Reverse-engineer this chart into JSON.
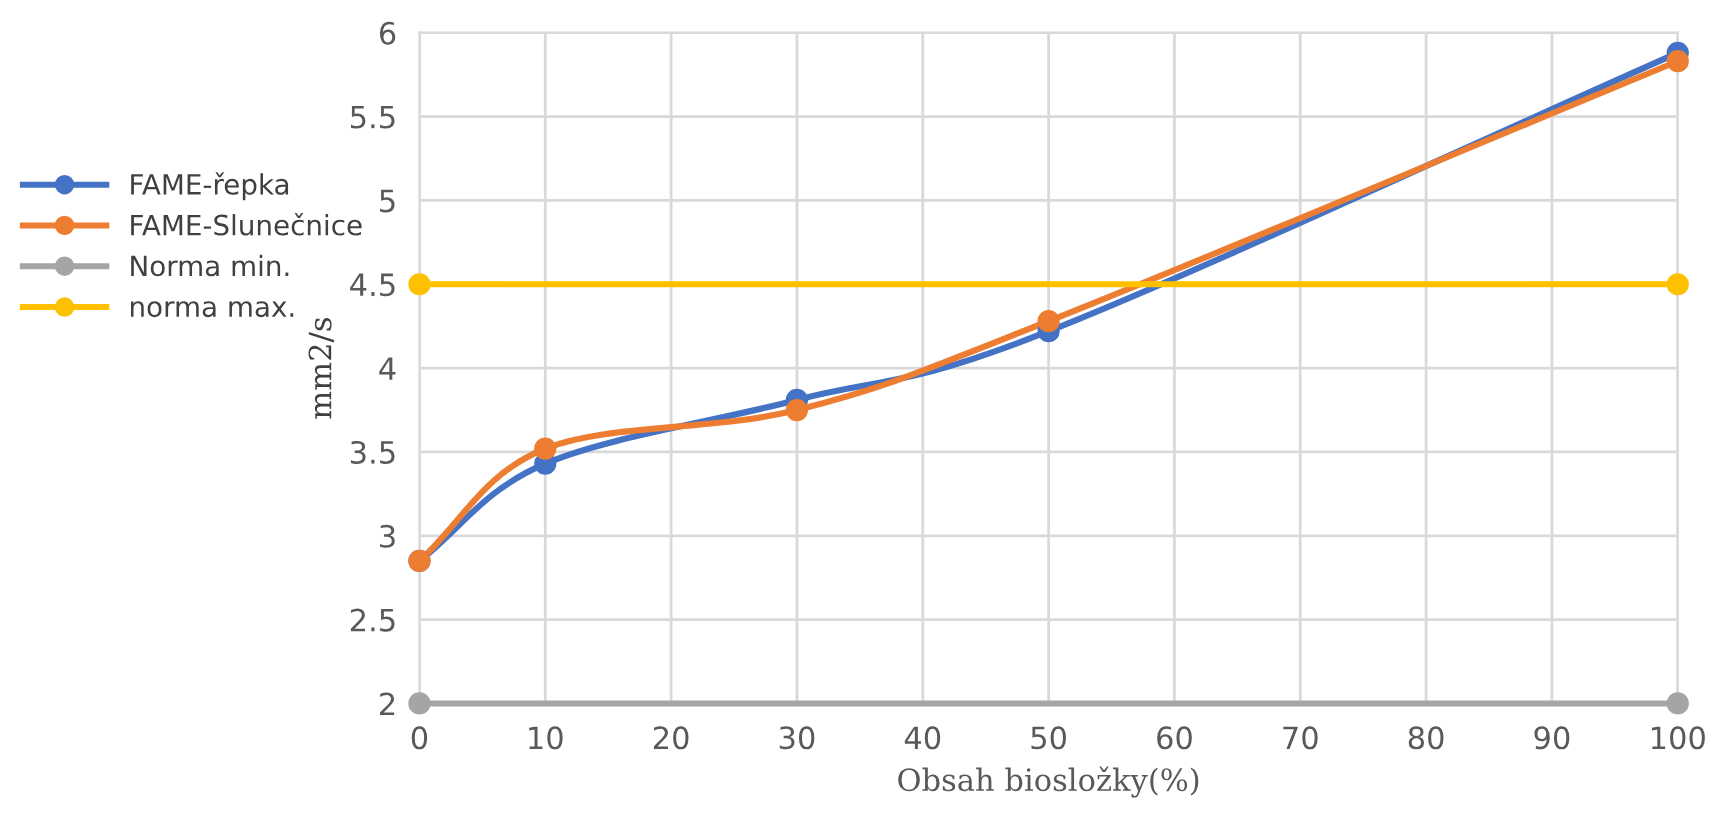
{
  "chart_data": {
    "type": "line",
    "xlabel": "Obsah biosložky(%)",
    "ylabel": "mm2/s",
    "xlim": [
      0,
      100
    ],
    "xticks": [
      0,
      10,
      20,
      30,
      40,
      50,
      60,
      70,
      80,
      90,
      100
    ],
    "ylim": [
      2,
      6
    ],
    "yticks": [
      2,
      2.5,
      3,
      3.5,
      4,
      4.5,
      5,
      5.5,
      6
    ],
    "grid": true,
    "legend": "left",
    "marker": "circle",
    "line_style": "solid",
    "series": [
      {
        "name": "FAME-řepka",
        "color": "#4472c4",
        "x": [
          0,
          10,
          30,
          50,
          100
        ],
        "values": [
          2.85,
          3.43,
          3.81,
          4.22,
          5.88
        ]
      },
      {
        "name": "FAME-Slunečnice",
        "color": "#ed7d31",
        "x": [
          0,
          10,
          30,
          50,
          100
        ],
        "values": [
          2.85,
          3.52,
          3.75,
          4.28,
          5.83
        ]
      },
      {
        "name": "Norma min.",
        "color": "#a5a5a5",
        "x": [
          0,
          100
        ],
        "values": [
          2,
          2
        ]
      },
      {
        "name": "norma max.",
        "color": "#ffc000",
        "x": [
          0,
          100
        ],
        "values": [
          4.5,
          4.5
        ]
      }
    ]
  }
}
